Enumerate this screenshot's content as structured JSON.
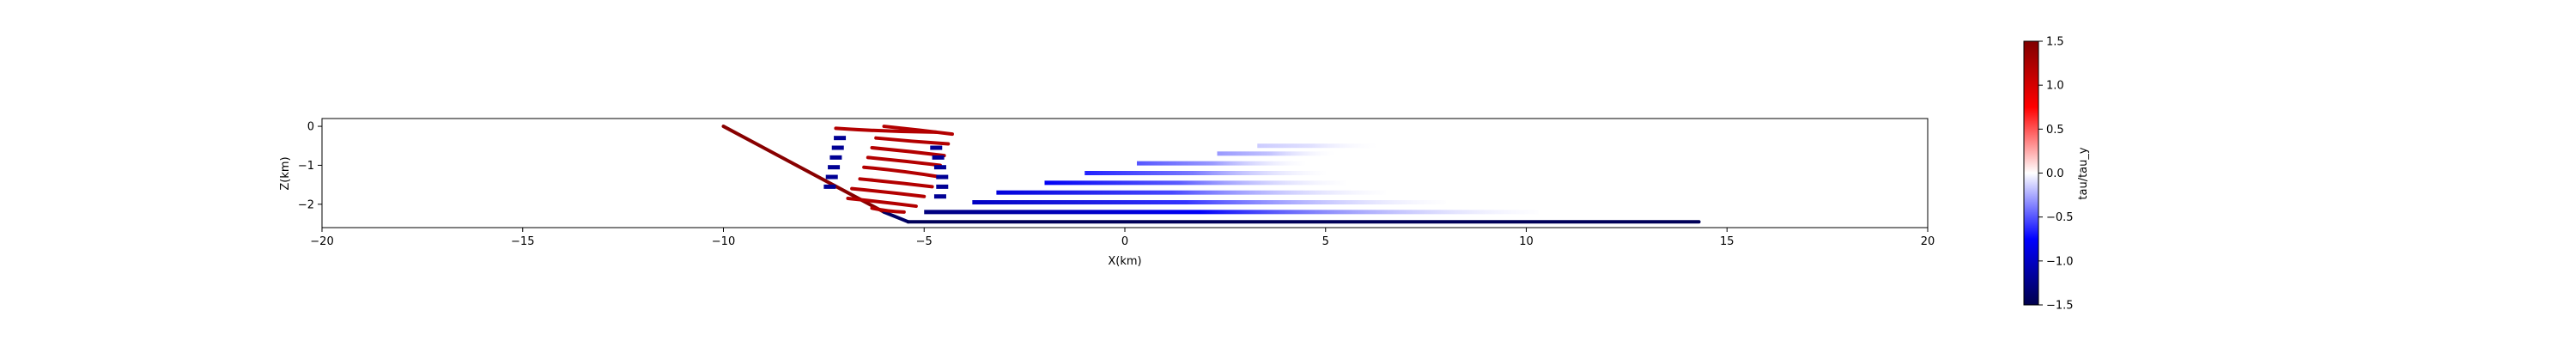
{
  "chart_data": {
    "type": "scatter",
    "title": "",
    "xlabel": "X(km)",
    "ylabel": "Z(km)",
    "xlim": [
      -20,
      20
    ],
    "ylim": [
      -2.6,
      0.2
    ],
    "xticks": [
      -20,
      -15,
      -10,
      -5,
      0,
      5,
      10,
      15,
      20
    ],
    "yticks": [
      0,
      -1,
      -2
    ],
    "xtick_labels": [
      "−20",
      "−15",
      "−10",
      "−5",
      "0",
      "5",
      "10",
      "15",
      "20"
    ],
    "ytick_labels": [
      "0",
      "−1",
      "−2"
    ],
    "grid": false,
    "colormap": "seismic",
    "colorbar": {
      "label": "tau/tau_y",
      "range": [
        -1.5,
        1.5
      ],
      "ticks": [
        1.5,
        1.0,
        0.5,
        0.0,
        -0.5,
        -1.0,
        -1.5
      ],
      "tick_labels": [
        "1.5",
        "1.0",
        "0.5",
        "0.0",
        "−0.5",
        "−1.0",
        "−1.5"
      ],
      "stops": [
        "#00004c",
        "#0000ff",
        "#ffffff",
        "#ff0000",
        "#800000"
      ]
    },
    "series": [
      {
        "kind": "fault-ramp",
        "x": [
          -10.0,
          -6.0
        ],
        "z": [
          0.0,
          -2.2
        ],
        "value": 1.45
      },
      {
        "kind": "fault-bend",
        "x": [
          -6.0,
          -5.4
        ],
        "z": [
          -2.2,
          -2.45
        ],
        "value": -1.4
      },
      {
        "kind": "fault-flat",
        "x": [
          -5.4,
          14.3
        ],
        "z": [
          -2.45,
          -2.45
        ],
        "value": -1.45
      },
      {
        "kind": "red-curve",
        "x0": -7.2,
        "x1": -4.7,
        "z0": -0.05,
        "z1": -0.15,
        "value": 1.2
      },
      {
        "kind": "red-curve",
        "x0": -6.0,
        "x1": -4.3,
        "z0": 0.0,
        "z1": -0.2,
        "value": 1.2
      },
      {
        "kind": "red-curve",
        "x0": -6.2,
        "x1": -4.4,
        "z0": -0.3,
        "z1": -0.45,
        "value": 1.2
      },
      {
        "kind": "red-curve",
        "x0": -6.3,
        "x1": -4.5,
        "z0": -0.55,
        "z1": -0.75,
        "value": 1.2
      },
      {
        "kind": "red-curve",
        "x0": -6.4,
        "x1": -4.6,
        "z0": -0.8,
        "z1": -1.0,
        "value": 1.2
      },
      {
        "kind": "red-curve",
        "x0": -6.5,
        "x1": -4.6,
        "z0": -1.05,
        "z1": -1.3,
        "value": 1.2
      },
      {
        "kind": "red-curve",
        "x0": -6.6,
        "x1": -4.8,
        "z0": -1.35,
        "z1": -1.55,
        "value": 1.2
      },
      {
        "kind": "red-curve",
        "x0": -6.8,
        "x1": -5.0,
        "z0": -1.6,
        "z1": -1.8,
        "value": 1.2
      },
      {
        "kind": "red-curve",
        "x0": -6.9,
        "x1": -5.2,
        "z0": -1.85,
        "z1": -2.05,
        "value": 1.2
      },
      {
        "kind": "red-curve",
        "x0": -6.3,
        "x1": -5.5,
        "z0": -2.1,
        "z1": -2.2,
        "value": 1.2
      },
      {
        "kind": "blue-column",
        "x": [
          -7.35,
          -7.3,
          -7.25,
          -7.2,
          -7.15,
          -7.1
        ],
        "z": [
          -1.55,
          -1.3,
          -1.05,
          -0.8,
          -0.55,
          -0.3
        ],
        "value": -1.2
      },
      {
        "kind": "blue-column",
        "x": [
          -4.6,
          -4.55,
          -4.55,
          -4.6,
          -4.65,
          -4.7
        ],
        "z": [
          -1.8,
          -1.55,
          -1.3,
          -1.05,
          -0.8,
          -0.55
        ],
        "value": -1.2
      },
      {
        "kind": "blue-fan",
        "x0": -5.0,
        "x1": 10.3,
        "z": -2.2,
        "value": -1.3
      },
      {
        "kind": "blue-fan",
        "x0": -3.8,
        "x1": 8.0,
        "z": -1.95,
        "value": -1.0
      },
      {
        "kind": "blue-fan",
        "x0": -3.2,
        "x1": 6.5,
        "z": -1.7,
        "value": -0.9
      },
      {
        "kind": "blue-fan",
        "x0": -2.0,
        "x1": 5.5,
        "z": -1.45,
        "value": -0.8
      },
      {
        "kind": "blue-fan",
        "x0": -1.0,
        "x1": 5.0,
        "z": -1.2,
        "value": -0.65
      },
      {
        "kind": "blue-fan",
        "x0": 0.3,
        "x1": 4.5,
        "z": -0.95,
        "value": -0.5
      },
      {
        "kind": "blue-fan",
        "x0": 2.3,
        "x1": 5.2,
        "z": -0.7,
        "value": -0.3
      },
      {
        "kind": "blue-fan",
        "x0": 3.3,
        "x1": 6.3,
        "z": -0.5,
        "value": -0.15
      }
    ]
  }
}
